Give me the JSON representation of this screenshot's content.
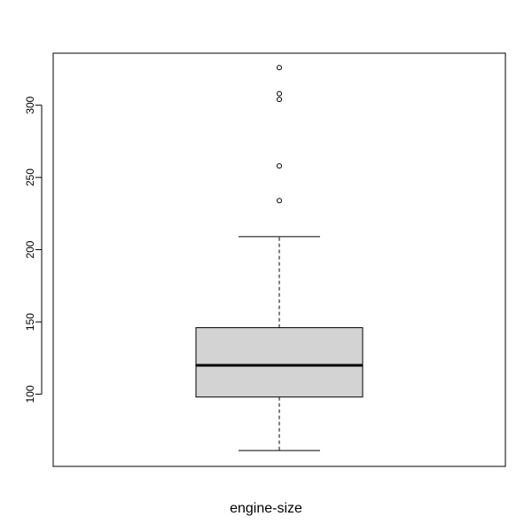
{
  "chart_data": {
    "type": "boxplot",
    "xlabel": "engine-size",
    "ylabel": "",
    "title": "",
    "ylim": [
      50,
      336
    ],
    "yticks": [
      100,
      150,
      200,
      250,
      300
    ],
    "box": {
      "whisker_low": 61,
      "q1": 98,
      "median": 120,
      "q3": 146,
      "whisker_high": 209
    },
    "outliers": [
      234,
      258,
      304,
      308,
      326
    ],
    "fill_color": "#d3d3d3",
    "line_color": "#000000"
  }
}
